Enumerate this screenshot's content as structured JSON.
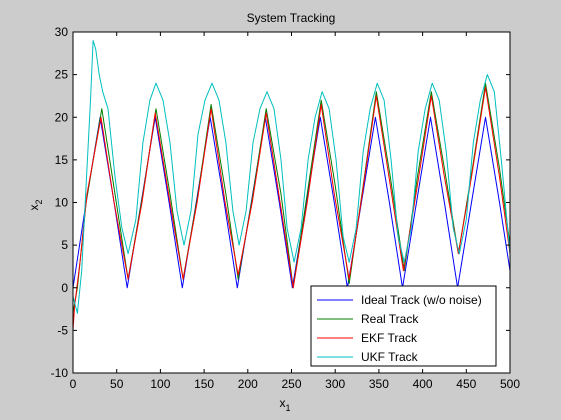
{
  "chart_data": {
    "type": "line",
    "title": "System Tracking",
    "xlabel": {
      "base": "x",
      "sub": "1"
    },
    "ylabel": {
      "base": "x",
      "sub": "2"
    },
    "xlim": [
      0,
      500
    ],
    "ylim": [
      -10,
      30
    ],
    "xticks": [
      0,
      50,
      100,
      150,
      200,
      250,
      300,
      350,
      400,
      450,
      500
    ],
    "yticks": [
      -10,
      -5,
      0,
      5,
      10,
      15,
      20,
      25,
      30
    ],
    "grid": false,
    "legend_position": "bottom-right",
    "series": [
      {
        "name": "Ideal Track (w/o noise)",
        "color": "#0000ff",
        "x": [
          0,
          15,
          31,
          47,
          62,
          78,
          94,
          110,
          125,
          141,
          157,
          173,
          188,
          204,
          220,
          236,
          251,
          267,
          283,
          299,
          314,
          330,
          346,
          362,
          377,
          393,
          409,
          425,
          440,
          456,
          472,
          488,
          500
        ],
        "y": [
          0,
          10,
          20,
          10,
          0,
          10,
          20,
          10,
          0,
          10,
          20,
          10,
          0,
          10,
          20,
          10,
          0,
          10,
          20,
          10,
          0,
          10,
          20,
          10,
          0,
          10,
          20,
          10,
          0,
          10,
          20,
          10,
          2
        ]
      },
      {
        "name": "Real Track",
        "color": "#007f00",
        "x": [
          0,
          5,
          15,
          33,
          48,
          63,
          80,
          95,
          111,
          126,
          143,
          158,
          175,
          189,
          206,
          221,
          238,
          252,
          268,
          284,
          300,
          316,
          332,
          347,
          363,
          379,
          394,
          410,
          425,
          441,
          457,
          472,
          488,
          500
        ],
        "y": [
          -3,
          0,
          10,
          21,
          11,
          1,
          11,
          21,
          11,
          1,
          11,
          21.5,
          11,
          1,
          11,
          21,
          11,
          0,
          11,
          22,
          12,
          0.5,
          12,
          23,
          13,
          2,
          13,
          23,
          14,
          4,
          14,
          24,
          14,
          5
        ]
      },
      {
        "name": "EKF Track",
        "color": "#ff0000",
        "x": [
          0,
          2,
          8,
          16,
          32,
          47,
          63,
          79,
          94,
          111,
          126,
          142,
          158,
          174,
          189,
          205,
          221,
          237,
          252,
          268,
          284,
          299,
          316,
          331,
          347,
          363,
          378,
          394,
          410,
          425,
          441,
          456,
          472,
          488,
          500
        ],
        "y": [
          -5,
          -2,
          3,
          11,
          20,
          10,
          1,
          10,
          20.5,
          10,
          1,
          10,
          21,
          10,
          1.5,
          10,
          20.5,
          10,
          0,
          10,
          21.5,
          11,
          1,
          11,
          22.5,
          12,
          2,
          12,
          22.5,
          13,
          4,
          13,
          23.5,
          13,
          4
        ]
      },
      {
        "name": "UKF Track",
        "color": "#00bfbf",
        "x": [
          0,
          5,
          10,
          15,
          20,
          23,
          26,
          30,
          34,
          40,
          48,
          56,
          63,
          72,
          80,
          88,
          95,
          103,
          111,
          119,
          127,
          135,
          143,
          151,
          159,
          167,
          175,
          183,
          190,
          198,
          206,
          214,
          222,
          230,
          238,
          245,
          253,
          261,
          269,
          277,
          285,
          293,
          301,
          309,
          316,
          324,
          332,
          340,
          348,
          356,
          364,
          372,
          379,
          387,
          395,
          403,
          411,
          419,
          427,
          435,
          442,
          450,
          458,
          466,
          474,
          482,
          490,
          500
        ],
        "y": [
          -1,
          -3,
          2,
          12,
          22,
          29,
          28,
          25,
          23,
          21,
          13,
          7,
          4,
          8,
          17,
          22,
          24,
          22,
          17,
          9,
          5,
          9,
          18,
          22,
          24,
          22,
          17,
          9,
          5,
          9,
          17,
          21,
          23,
          21,
          15,
          7,
          3,
          7,
          15,
          20,
          23,
          21,
          15,
          6,
          3,
          7,
          16,
          21,
          24,
          22,
          15,
          6,
          3,
          7,
          16,
          21,
          24,
          22,
          16,
          7,
          4,
          8,
          17,
          22,
          25,
          23,
          15,
          4
        ]
      }
    ]
  }
}
